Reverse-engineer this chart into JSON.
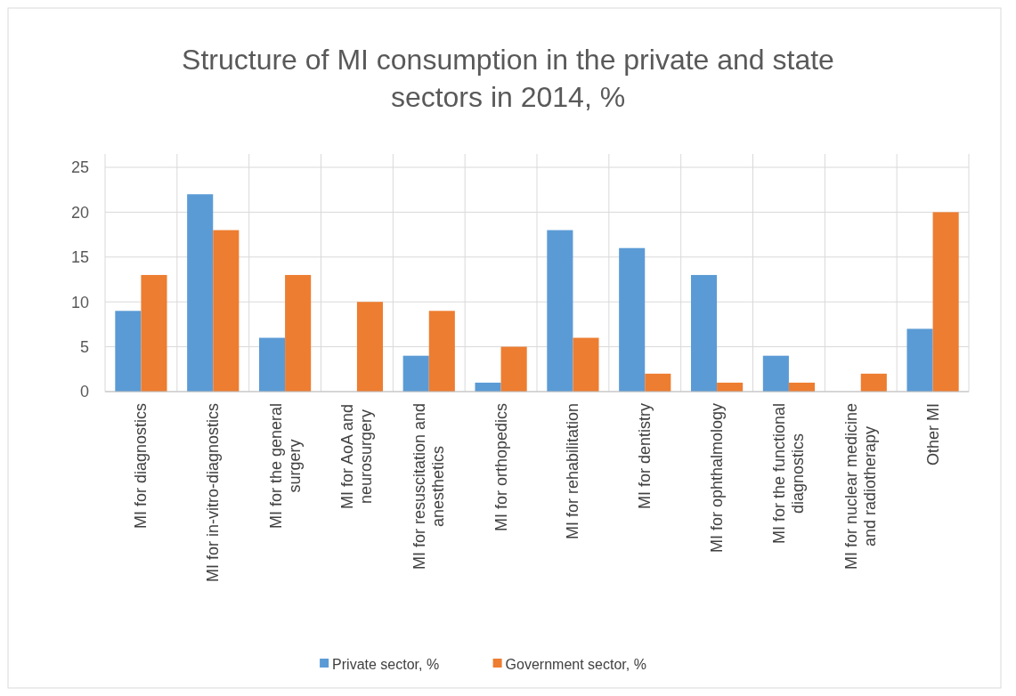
{
  "chart_data": {
    "type": "bar",
    "title": "Structure of MI consumption in the private and state sectors in 2014, %",
    "categories": [
      "MI for diagnostics",
      "MI for in-vitro-diagnostics",
      "MI for the general surgery",
      "MI for AoA and neurosurgery",
      "MI for resuscitation and anesthetics",
      "MI for orthopedics",
      "MI for rehabilitation",
      "MI for dentistry",
      "MI for ophthalmology",
      "MI for the functional diagnostics",
      "MI for nuclear medicine and radiotherapy",
      "Other MI"
    ],
    "series": [
      {
        "name": "Private  sector, %",
        "color": "#5b9bd5",
        "values": [
          9,
          22,
          6,
          0,
          4,
          1,
          18,
          16,
          13,
          4,
          0,
          7
        ]
      },
      {
        "name": "Government sector, %",
        "color": "#ed7d31",
        "values": [
          13,
          18,
          13,
          10,
          9,
          5,
          6,
          2,
          1,
          1,
          2,
          20
        ]
      }
    ],
    "ylim": [
      0,
      25
    ],
    "yticks": [
      0,
      5,
      10,
      15,
      20,
      25
    ],
    "grid": true,
    "legend": "bottom"
  }
}
